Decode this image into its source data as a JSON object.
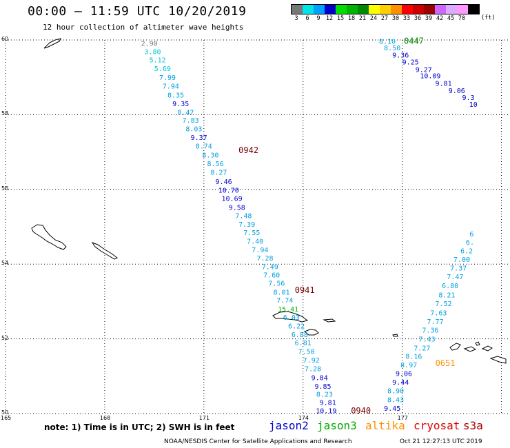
{
  "header": {
    "title": "00:00 – 11:59 UTC 10/20/2019",
    "subtitle": "12 hour collection of altimeter wave heights"
  },
  "legend": {
    "unit": "(ft)",
    "steps": [
      {
        "label": "3",
        "color": "#777777"
      },
      {
        "label": "6",
        "color": "#00e5e5"
      },
      {
        "label": "9",
        "color": "#00a0ff"
      },
      {
        "label": "12",
        "color": "#0000d0"
      },
      {
        "label": "15",
        "color": "#00e000"
      },
      {
        "label": "18",
        "color": "#00b400"
      },
      {
        "label": "21",
        "color": "#008800"
      },
      {
        "label": "24",
        "color": "#ffff00"
      },
      {
        "label": "27",
        "color": "#ffd000"
      },
      {
        "label": "30",
        "color": "#ff9000"
      },
      {
        "label": "33",
        "color": "#ff0000"
      },
      {
        "label": "36",
        "color": "#cc0000"
      },
      {
        "label": "39",
        "color": "#990000"
      },
      {
        "label": "42",
        "color": "#cc66ff"
      },
      {
        "label": "45",
        "color": "#ddaaff"
      },
      {
        "label": "70",
        "color": "#ff99ff"
      },
      {
        "label": "",
        "color": "#000000"
      }
    ]
  },
  "axes": {
    "lat_labels": [
      "60",
      "58",
      "56",
      "54",
      "52",
      "50"
    ],
    "lon_labels": [
      "165",
      "168",
      "171",
      "174",
      "177"
    ]
  },
  "map_data": {
    "grid": {
      "lat": [
        50,
        52,
        54,
        56,
        58,
        60
      ],
      "lon": [
        165,
        168,
        171,
        174,
        177,
        180
      ]
    },
    "track1": {
      "label": "0942",
      "label_color": "#7a0000",
      "label_pos": {
        "lat": 57.05,
        "lon": 172.05
      },
      "points": [
        {
          "lat": 59.92,
          "lon": 169.35,
          "v": "2.90"
        },
        {
          "lat": 59.7,
          "lon": 169.45,
          "v": "3.80"
        },
        {
          "lat": 59.47,
          "lon": 169.6,
          "v": "5.12"
        },
        {
          "lat": 59.24,
          "lon": 169.75,
          "v": "5.69"
        },
        {
          "lat": 59.0,
          "lon": 169.9,
          "v": "7.99"
        },
        {
          "lat": 58.77,
          "lon": 170.0,
          "v": "7.94"
        },
        {
          "lat": 58.53,
          "lon": 170.15,
          "v": "8.35"
        },
        {
          "lat": 58.3,
          "lon": 170.3,
          "v": "9.35"
        },
        {
          "lat": 58.07,
          "lon": 170.45,
          "v": "8.47"
        },
        {
          "lat": 57.86,
          "lon": 170.6,
          "v": "7.83"
        },
        {
          "lat": 57.63,
          "lon": 170.7,
          "v": "8.03"
        },
        {
          "lat": 57.4,
          "lon": 170.85,
          "v": "9.37"
        },
        {
          "lat": 57.17,
          "lon": 171.0,
          "v": "8.74"
        },
        {
          "lat": 56.93,
          "lon": 171.2,
          "v": "8.30"
        },
        {
          "lat": 56.7,
          "lon": 171.35,
          "v": "8.56"
        },
        {
          "lat": 56.47,
          "lon": 171.45,
          "v": "8.27"
        },
        {
          "lat": 56.22,
          "lon": 171.6,
          "v": "9.46"
        },
        {
          "lat": 55.99,
          "lon": 171.75,
          "v": "10.70"
        },
        {
          "lat": 55.77,
          "lon": 171.85,
          "v": "10.69"
        },
        {
          "lat": 55.53,
          "lon": 172.0,
          "v": "9.58"
        },
        {
          "lat": 55.3,
          "lon": 172.2,
          "v": "7.48"
        },
        {
          "lat": 55.07,
          "lon": 172.3,
          "v": "7.39"
        },
        {
          "lat": 54.85,
          "lon": 172.45,
          "v": "7.55"
        },
        {
          "lat": 54.62,
          "lon": 172.55,
          "v": "7.40"
        },
        {
          "lat": 54.39,
          "lon": 172.7,
          "v": "7.94"
        },
        {
          "lat": 54.17,
          "lon": 172.85,
          "v": "7.28"
        },
        {
          "lat": 53.94,
          "lon": 173.0,
          "v": "7.49"
        }
      ]
    },
    "track2": {
      "label": "0941",
      "label_color": "#7a0000",
      "label_pos": {
        "lat": 53.3,
        "lon": 173.75
      },
      "points": [
        {
          "lat": 53.72,
          "lon": 173.05,
          "v": "7.60"
        },
        {
          "lat": 53.5,
          "lon": 173.2,
          "v": "7.56"
        },
        {
          "lat": 53.26,
          "lon": 173.35,
          "v": "8.01"
        },
        {
          "lat": 53.04,
          "lon": 173.45,
          "v": "7.74"
        },
        {
          "lat": 52.8,
          "lon": 173.55,
          "v": "15.41"
        },
        {
          "lat": 52.58,
          "lon": 173.65,
          "v": "6.03"
        },
        {
          "lat": 52.35,
          "lon": 173.8,
          "v": "6.22"
        },
        {
          "lat": 52.12,
          "lon": 173.9,
          "v": "6.88"
        },
        {
          "lat": 51.9,
          "lon": 174.0,
          "v": "6.81"
        },
        {
          "lat": 51.67,
          "lon": 174.1,
          "v": "7.50"
        },
        {
          "lat": 51.44,
          "lon": 174.25,
          "v": "7.92"
        },
        {
          "lat": 51.21,
          "lon": 174.3,
          "v": "7.28"
        },
        {
          "lat": 50.97,
          "lon": 174.5,
          "v": "9.84"
        },
        {
          "lat": 50.74,
          "lon": 174.6,
          "v": "9.85"
        },
        {
          "lat": 50.53,
          "lon": 174.65,
          "v": "8.23"
        },
        {
          "lat": 50.3,
          "lon": 174.75,
          "v": "9.81"
        },
        {
          "lat": 50.08,
          "lon": 174.7,
          "v": "10.19"
        }
      ],
      "end_label": "0940",
      "end_label_pos": {
        "lat": 50.07,
        "lon": 175.75
      }
    },
    "track3": {
      "label": "0651",
      "label_color": "#ff9000",
      "label_pos": {
        "lat": 51.35,
        "lon": 178.0
      },
      "points": [
        {
          "lat": 50.15,
          "lon": 176.7,
          "v": "9.45"
        },
        {
          "lat": 50.38,
          "lon": 176.8,
          "v": "8.43"
        },
        {
          "lat": 50.62,
          "lon": 176.8,
          "v": "8.90"
        },
        {
          "lat": 50.85,
          "lon": 176.95,
          "v": "9.44"
        },
        {
          "lat": 51.08,
          "lon": 177.05,
          "v": "9.06"
        },
        {
          "lat": 51.31,
          "lon": 177.2,
          "v": "8.97"
        },
        {
          "lat": 51.54,
          "lon": 177.35,
          "v": "8.16"
        },
        {
          "lat": 51.76,
          "lon": 177.6,
          "v": "7.27"
        },
        {
          "lat": 52.0,
          "lon": 177.75,
          "v": "7.43"
        },
        {
          "lat": 52.24,
          "lon": 177.85,
          "v": "7.36"
        },
        {
          "lat": 52.47,
          "lon": 178.0,
          "v": "7.77"
        },
        {
          "lat": 52.7,
          "lon": 178.1,
          "v": "7.63"
        },
        {
          "lat": 52.95,
          "lon": 178.25,
          "v": "7.52"
        },
        {
          "lat": 53.18,
          "lon": 178.35,
          "v": "8.21"
        },
        {
          "lat": 53.43,
          "lon": 178.45,
          "v": "6.80"
        },
        {
          "lat": 53.67,
          "lon": 178.6,
          "v": "7.47"
        },
        {
          "lat": 53.9,
          "lon": 178.7,
          "v": "7.37"
        },
        {
          "lat": 54.13,
          "lon": 178.8,
          "v": "7.00"
        },
        {
          "lat": 54.36,
          "lon": 178.95,
          "v": "6.2"
        },
        {
          "lat": 54.59,
          "lon": 179.05,
          "v": "6."
        },
        {
          "lat": 54.82,
          "lon": 179.1,
          "v": "6"
        }
      ]
    },
    "track4": {
      "label": "0447",
      "label_color": "#008800",
      "label_pos": {
        "lat": 59.97,
        "lon": 177.05
      },
      "points": [
        {
          "lat": 59.97,
          "lon": 176.55,
          "v": "8.10"
        },
        {
          "lat": 59.8,
          "lon": 176.7,
          "v": "8.50"
        },
        {
          "lat": 59.6,
          "lon": 176.95,
          "v": "9.36"
        },
        {
          "lat": 59.42,
          "lon": 177.25,
          "v": "9.25"
        },
        {
          "lat": 59.22,
          "lon": 177.65,
          "v": "9.27"
        },
        {
          "lat": 59.05,
          "lon": 177.85,
          "v": "10.09"
        },
        {
          "lat": 58.85,
          "lon": 178.25,
          "v": "9.81"
        },
        {
          "lat": 58.65,
          "lon": 178.65,
          "v": "9.06"
        },
        {
          "lat": 58.47,
          "lon": 179.0,
          "v": "9.3"
        },
        {
          "lat": 58.28,
          "lon": 179.15,
          "v": "10"
        }
      ]
    }
  },
  "footer": {
    "note": "note: 1) Time is in UTC; 2) SWH is in feet",
    "satellites": [
      {
        "name": "jason2",
        "color": "#0000d0"
      },
      {
        "name": "jason3",
        "color": "#00aa00"
      },
      {
        "name": "altika",
        "color": "#ff9000"
      },
      {
        "name": "cryosat",
        "color": "#dd0000"
      },
      {
        "name": "s3a",
        "color": "#aa0000"
      }
    ],
    "credit": "NOAA/NESDIS Center for Satellite Applications and Research",
    "timestamp": "Oct 21 12:27:13 UTC 2019"
  }
}
